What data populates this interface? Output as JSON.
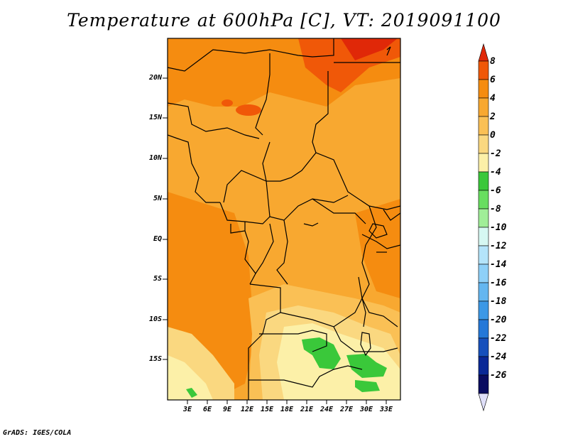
{
  "title": "Temperature at 600hPa [C], VT: 2019091100",
  "footer": "GrADS: IGES/COLA",
  "lat_labels": [
    "20N",
    "15N",
    "10N",
    "5N",
    "EQ",
    "5S",
    "10S",
    "15S"
  ],
  "lon_labels": [
    "3E",
    "6E",
    "9E",
    "12E",
    "15E",
    "18E",
    "21E",
    "24E",
    "27E",
    "30E",
    "33E"
  ],
  "colorbar": {
    "labels": [
      "8",
      "6",
      "4",
      "2",
      "0",
      "-2",
      "-4",
      "-6",
      "-8",
      "-10",
      "-12",
      "-14",
      "-16",
      "-18",
      "-20",
      "-22",
      "-24",
      "-26"
    ],
    "colors": [
      "#e02808",
      "#f05808",
      "#f58c10",
      "#f8a830",
      "#fac055",
      "#fad880",
      "#fcf0a8",
      "#3ac83a",
      "#68de60",
      "#a0ee98",
      "#d6f8f2",
      "#b4e4fa",
      "#8ed0f8",
      "#64b6f0",
      "#3c98e6",
      "#2478d8",
      "#1650bc",
      "#0a2896",
      "#0a0c60",
      "#e0e0fa"
    ]
  }
}
